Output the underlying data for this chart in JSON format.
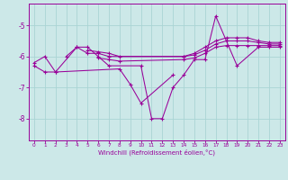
{
  "xlabel": "Windchill (Refroidissement éolien,°C)",
  "background_color": "#cce8e8",
  "grid_color": "#aad4d4",
  "line_color": "#990099",
  "xlim": [
    -0.5,
    23.5
  ],
  "ylim": [
    -8.7,
    -4.3
  ],
  "yticks": [
    -8,
    -7,
    -6,
    -5
  ],
  "xticks": [
    0,
    1,
    2,
    3,
    4,
    5,
    6,
    7,
    8,
    9,
    10,
    11,
    12,
    13,
    14,
    15,
    16,
    17,
    18,
    19,
    20,
    21,
    22,
    23
  ],
  "series": [
    {
      "x": [
        0,
        1,
        2,
        4,
        5,
        6,
        7,
        10,
        11,
        12,
        13,
        14,
        15,
        16,
        17,
        18,
        19,
        21,
        22,
        23
      ],
      "y": [
        -6.2,
        -6.0,
        -6.5,
        -5.7,
        -5.7,
        -6.0,
        -6.3,
        -6.3,
        -8.0,
        -8.0,
        -7.0,
        -6.6,
        -6.1,
        -6.1,
        -4.7,
        -5.5,
        -6.3,
        -5.7,
        -5.7,
        -5.7
      ]
    },
    {
      "x": [
        3,
        4,
        5,
        6,
        7,
        14,
        15,
        16,
        17,
        18,
        19,
        20,
        21,
        22,
        23
      ],
      "y": [
        -6.0,
        -5.7,
        -5.9,
        -5.9,
        -6.0,
        -6.0,
        -5.9,
        -5.7,
        -5.5,
        -5.4,
        -5.4,
        -5.4,
        -5.5,
        -5.55,
        -5.55
      ]
    },
    {
      "x": [
        5,
        6,
        7,
        8,
        14,
        15,
        16,
        17,
        18,
        19,
        20,
        21,
        22,
        23
      ],
      "y": [
        -5.8,
        -5.85,
        -5.9,
        -6.0,
        -6.0,
        -5.95,
        -5.8,
        -5.6,
        -5.5,
        -5.5,
        -5.5,
        -5.55,
        -5.6,
        -5.6
      ]
    },
    {
      "x": [
        6,
        7,
        8,
        14,
        15,
        16,
        17,
        18,
        19,
        20,
        21,
        22,
        23
      ],
      "y": [
        -6.05,
        -6.1,
        -6.15,
        -6.1,
        -6.05,
        -5.9,
        -5.7,
        -5.65,
        -5.65,
        -5.65,
        -5.65,
        -5.65,
        -5.65
      ]
    },
    {
      "x": [
        0,
        1,
        2,
        8,
        9,
        10,
        13
      ],
      "y": [
        -6.3,
        -6.5,
        -6.5,
        -6.4,
        -6.9,
        -7.5,
        -6.6
      ]
    }
  ]
}
